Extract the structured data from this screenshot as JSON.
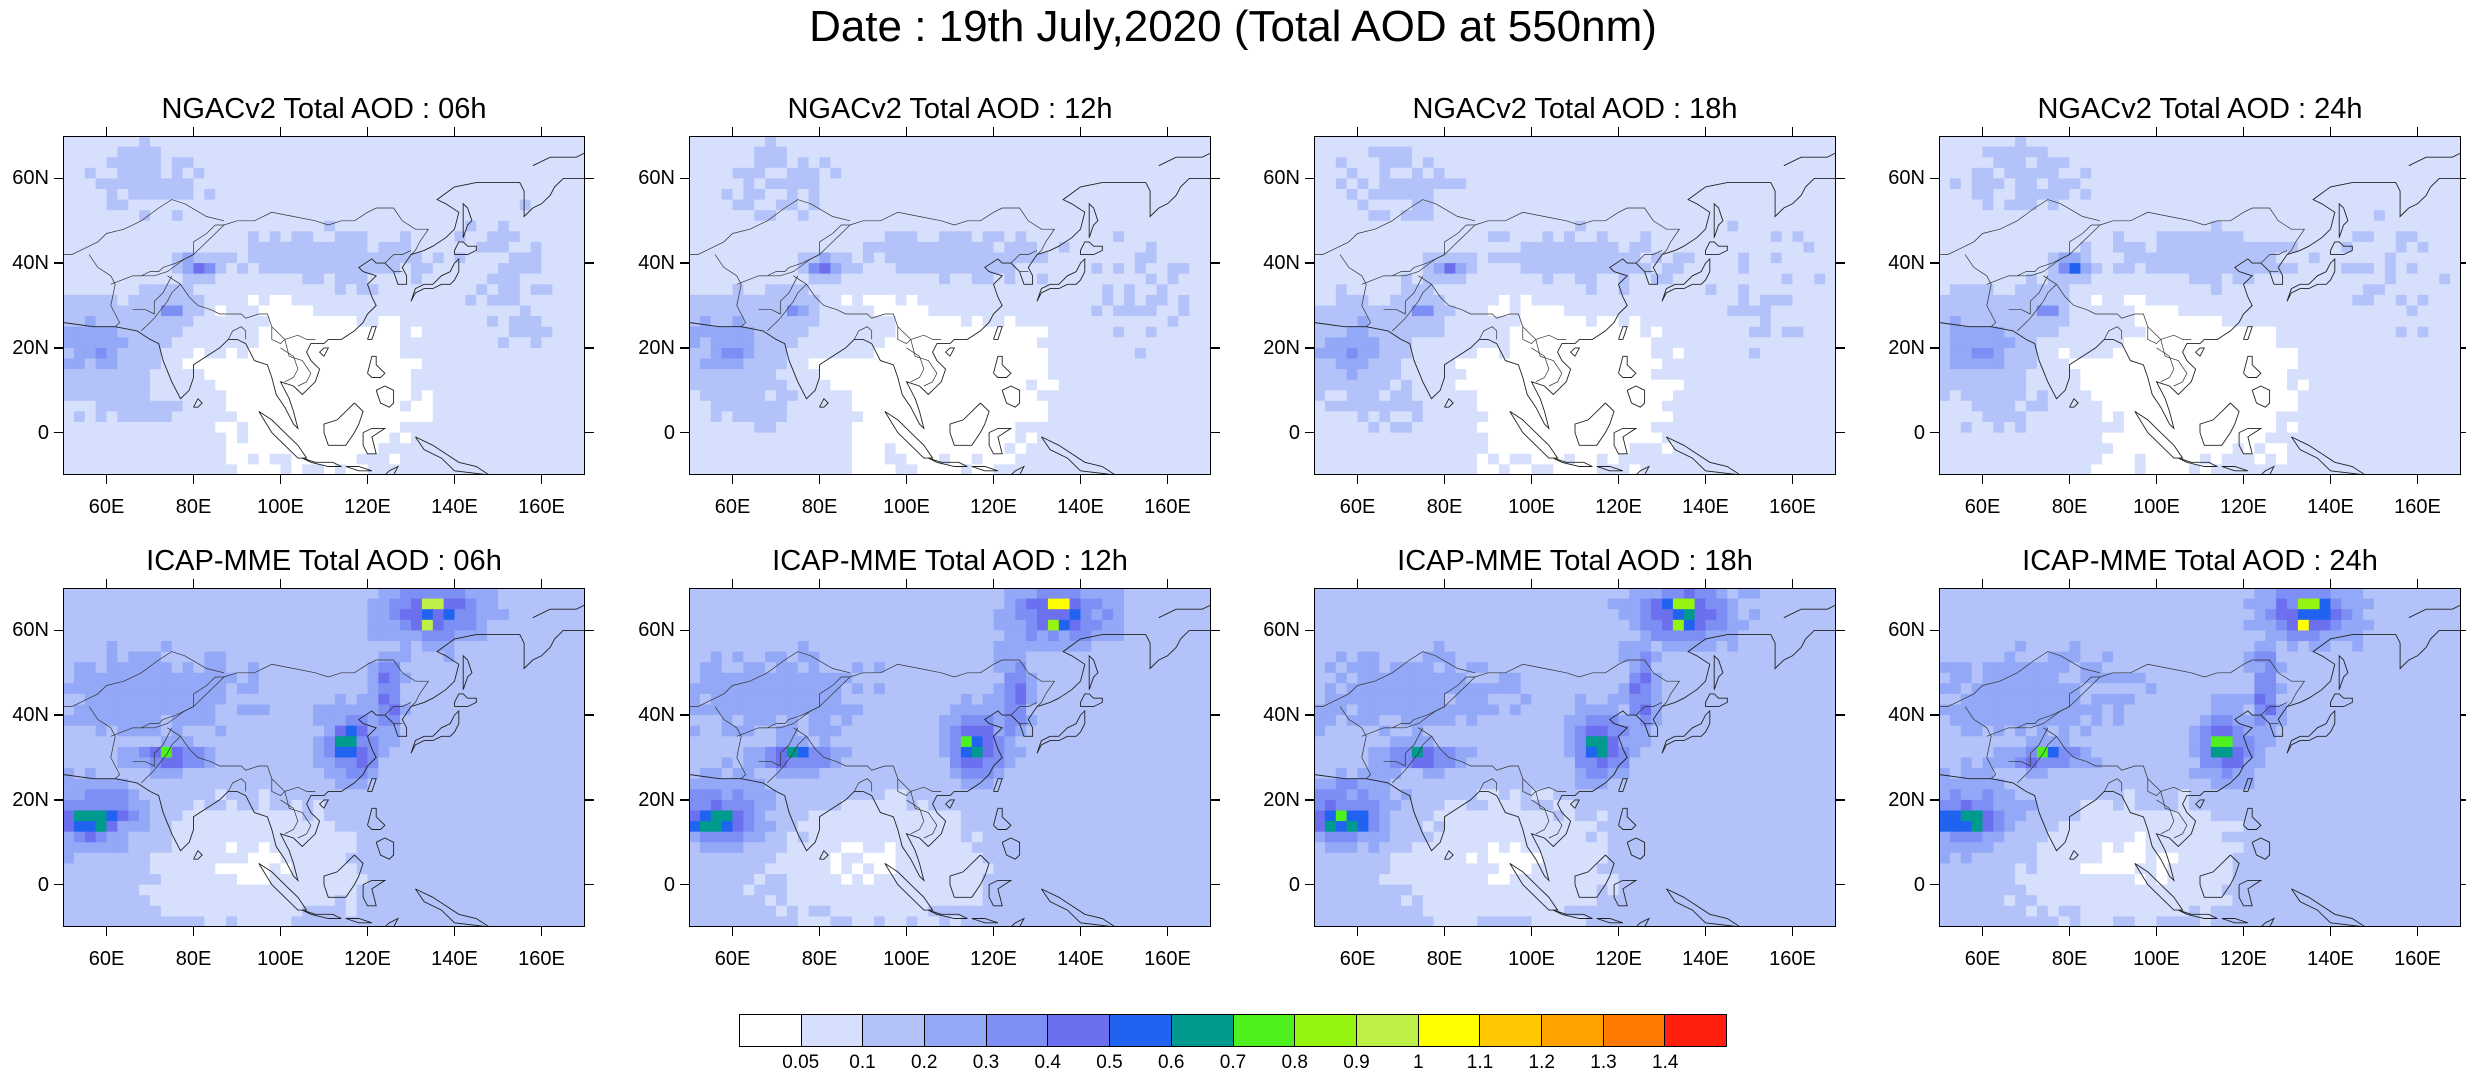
{
  "title": "Date : 19th July,2020 (Total AOD at 550nm)",
  "axes": {
    "lat_labels": [
      "0",
      "20N",
      "40N",
      "60N"
    ],
    "lon_labels": [
      "60E",
      "80E",
      "100E",
      "120E",
      "140E",
      "160E"
    ]
  },
  "panels": [
    {
      "title": "NGACv2 Total AOD : 06h",
      "model": "ngac",
      "lead_hours": 6
    },
    {
      "title": "NGACv2 Total AOD : 12h",
      "model": "ngac",
      "lead_hours": 12
    },
    {
      "title": "NGACv2 Total AOD : 18h",
      "model": "ngac",
      "lead_hours": 18
    },
    {
      "title": "NGACv2 Total AOD : 24h",
      "model": "ngac",
      "lead_hours": 24
    },
    {
      "title": "ICAP-MME Total AOD : 06h",
      "model": "icap",
      "lead_hours": 6
    },
    {
      "title": "ICAP-MME Total AOD : 12h",
      "model": "icap",
      "lead_hours": 12
    },
    {
      "title": "ICAP-MME Total AOD : 18h",
      "model": "icap",
      "lead_hours": 18
    },
    {
      "title": "ICAP-MME Total AOD : 24h",
      "model": "icap",
      "lead_hours": 24
    }
  ],
  "colorbar": {
    "colors": [
      "#ffffff",
      "#d6e0fd",
      "#b3c3fa",
      "#93a8f7",
      "#7d8ff4",
      "#6c70ef",
      "#1f63f0",
      "#009a8f",
      "#4ef01e",
      "#95f511",
      "#bff048",
      "#ffff00",
      "#ffc800",
      "#ffa200",
      "#ff7a00",
      "#ff2010"
    ],
    "labels": [
      "0.05",
      "0.1",
      "0.2",
      "0.3",
      "0.4",
      "0.5",
      "0.6",
      "0.7",
      "0.8",
      "0.9",
      "1",
      "1.1",
      "1.2",
      "1.3",
      "1.4"
    ]
  },
  "chart_data": {
    "type": "heatmap",
    "variable": "Total AOD at 550nm",
    "domain": {
      "lon_range": [
        50,
        170
      ],
      "lat_range": [
        -10,
        70
      ]
    },
    "levels": [
      0.05,
      0.1,
      0.2,
      0.3,
      0.4,
      0.5,
      0.6,
      0.7,
      0.8,
      0.9,
      1.0,
      1.1,
      1.2,
      1.3,
      1.4
    ],
    "fields": {
      "ngac": {
        "background": 0.07,
        "clear": [
          {
            "lon": 100,
            "lat": 15,
            "rlon": 40,
            "rlat": 25
          }
        ],
        "blobs": [
          {
            "lon": 60,
            "lat": 20,
            "rlon": 14,
            "rlat": 10,
            "value": 0.33
          },
          {
            "lon": 60,
            "lat": 18,
            "rlon": 4,
            "rlat": 3,
            "value": 0.48
          },
          {
            "lon": 74,
            "lat": 28,
            "rlon": 8,
            "rlat": 7,
            "value": 0.3
          },
          {
            "lon": 75,
            "lat": 29,
            "rlon": 2.5,
            "rlat": 2.5,
            "value": 0.62
          },
          {
            "lon": 81,
            "lat": 39,
            "rlon": 5,
            "rlat": 3,
            "value": 0.42
          },
          {
            "lon": 82,
            "lat": 39,
            "rlon": 2,
            "rlat": 1.5,
            "value": 0.72
          },
          {
            "lon": 108,
            "lat": 40,
            "rlon": 28,
            "rlat": 8,
            "value": 0.17
          },
          {
            "lon": 115,
            "lat": 33,
            "rlon": 12,
            "rlat": 7,
            "value": 0.16
          },
          {
            "lon": 90,
            "lat": 22,
            "rlon": 10,
            "rlat": 7,
            "value": 0.19
          },
          {
            "lon": 72,
            "lat": 8,
            "rlon": 20,
            "rlat": 10,
            "value": 0.18
          },
          {
            "lon": 150,
            "lat": 30,
            "rlon": 22,
            "rlat": 28,
            "value": 0.11
          },
          {
            "lon": 70,
            "lat": 58,
            "rlon": 20,
            "rlat": 12,
            "value": 0.11
          },
          {
            "lon": 68,
            "lat": 65,
            "rlon": 5,
            "rlat": 4,
            "value": 0.14
          }
        ]
      },
      "icap": {
        "background": 0.16,
        "clear": [
          {
            "lon": 95,
            "lat": 5,
            "rlon": 35,
            "rlat": 18
          }
        ],
        "blobs": [
          {
            "lon": 58,
            "lat": 16,
            "rlon": 12,
            "rlat": 8,
            "value": 0.5
          },
          {
            "lon": 57,
            "lat": 15,
            "rlon": 8,
            "rlat": 4,
            "value": 0.85
          },
          {
            "lon": 75,
            "lat": 30,
            "rlon": 9,
            "rlat": 3,
            "value": 0.5
          },
          {
            "lon": 74,
            "lat": 31,
            "rlon": 3,
            "rlat": 1.5,
            "value": 0.82
          },
          {
            "lon": 116,
            "lat": 32,
            "rlon": 6,
            "rlat": 8,
            "value": 0.55
          },
          {
            "lon": 115,
            "lat": 33,
            "rlon": 3,
            "rlat": 4,
            "value": 0.85
          },
          {
            "lon": 125,
            "lat": 45,
            "rlon": 3,
            "rlat": 10,
            "value": 0.45
          },
          {
            "lon": 135,
            "lat": 64,
            "rlon": 10,
            "rlat": 6,
            "value": 0.55
          },
          {
            "lon": 135,
            "lat": 66,
            "rlon": 3,
            "rlat": 2,
            "value": 1.15
          },
          {
            "lon": 133,
            "lat": 62,
            "rlon": 1.5,
            "rlat": 1.5,
            "value": 1.4
          },
          {
            "lon": 70,
            "lat": 45,
            "rlon": 25,
            "rlat": 10,
            "value": 0.25
          },
          {
            "lon": 120,
            "lat": 5,
            "rlon": 25,
            "rlat": 10,
            "value": 0.2
          }
        ]
      }
    }
  }
}
